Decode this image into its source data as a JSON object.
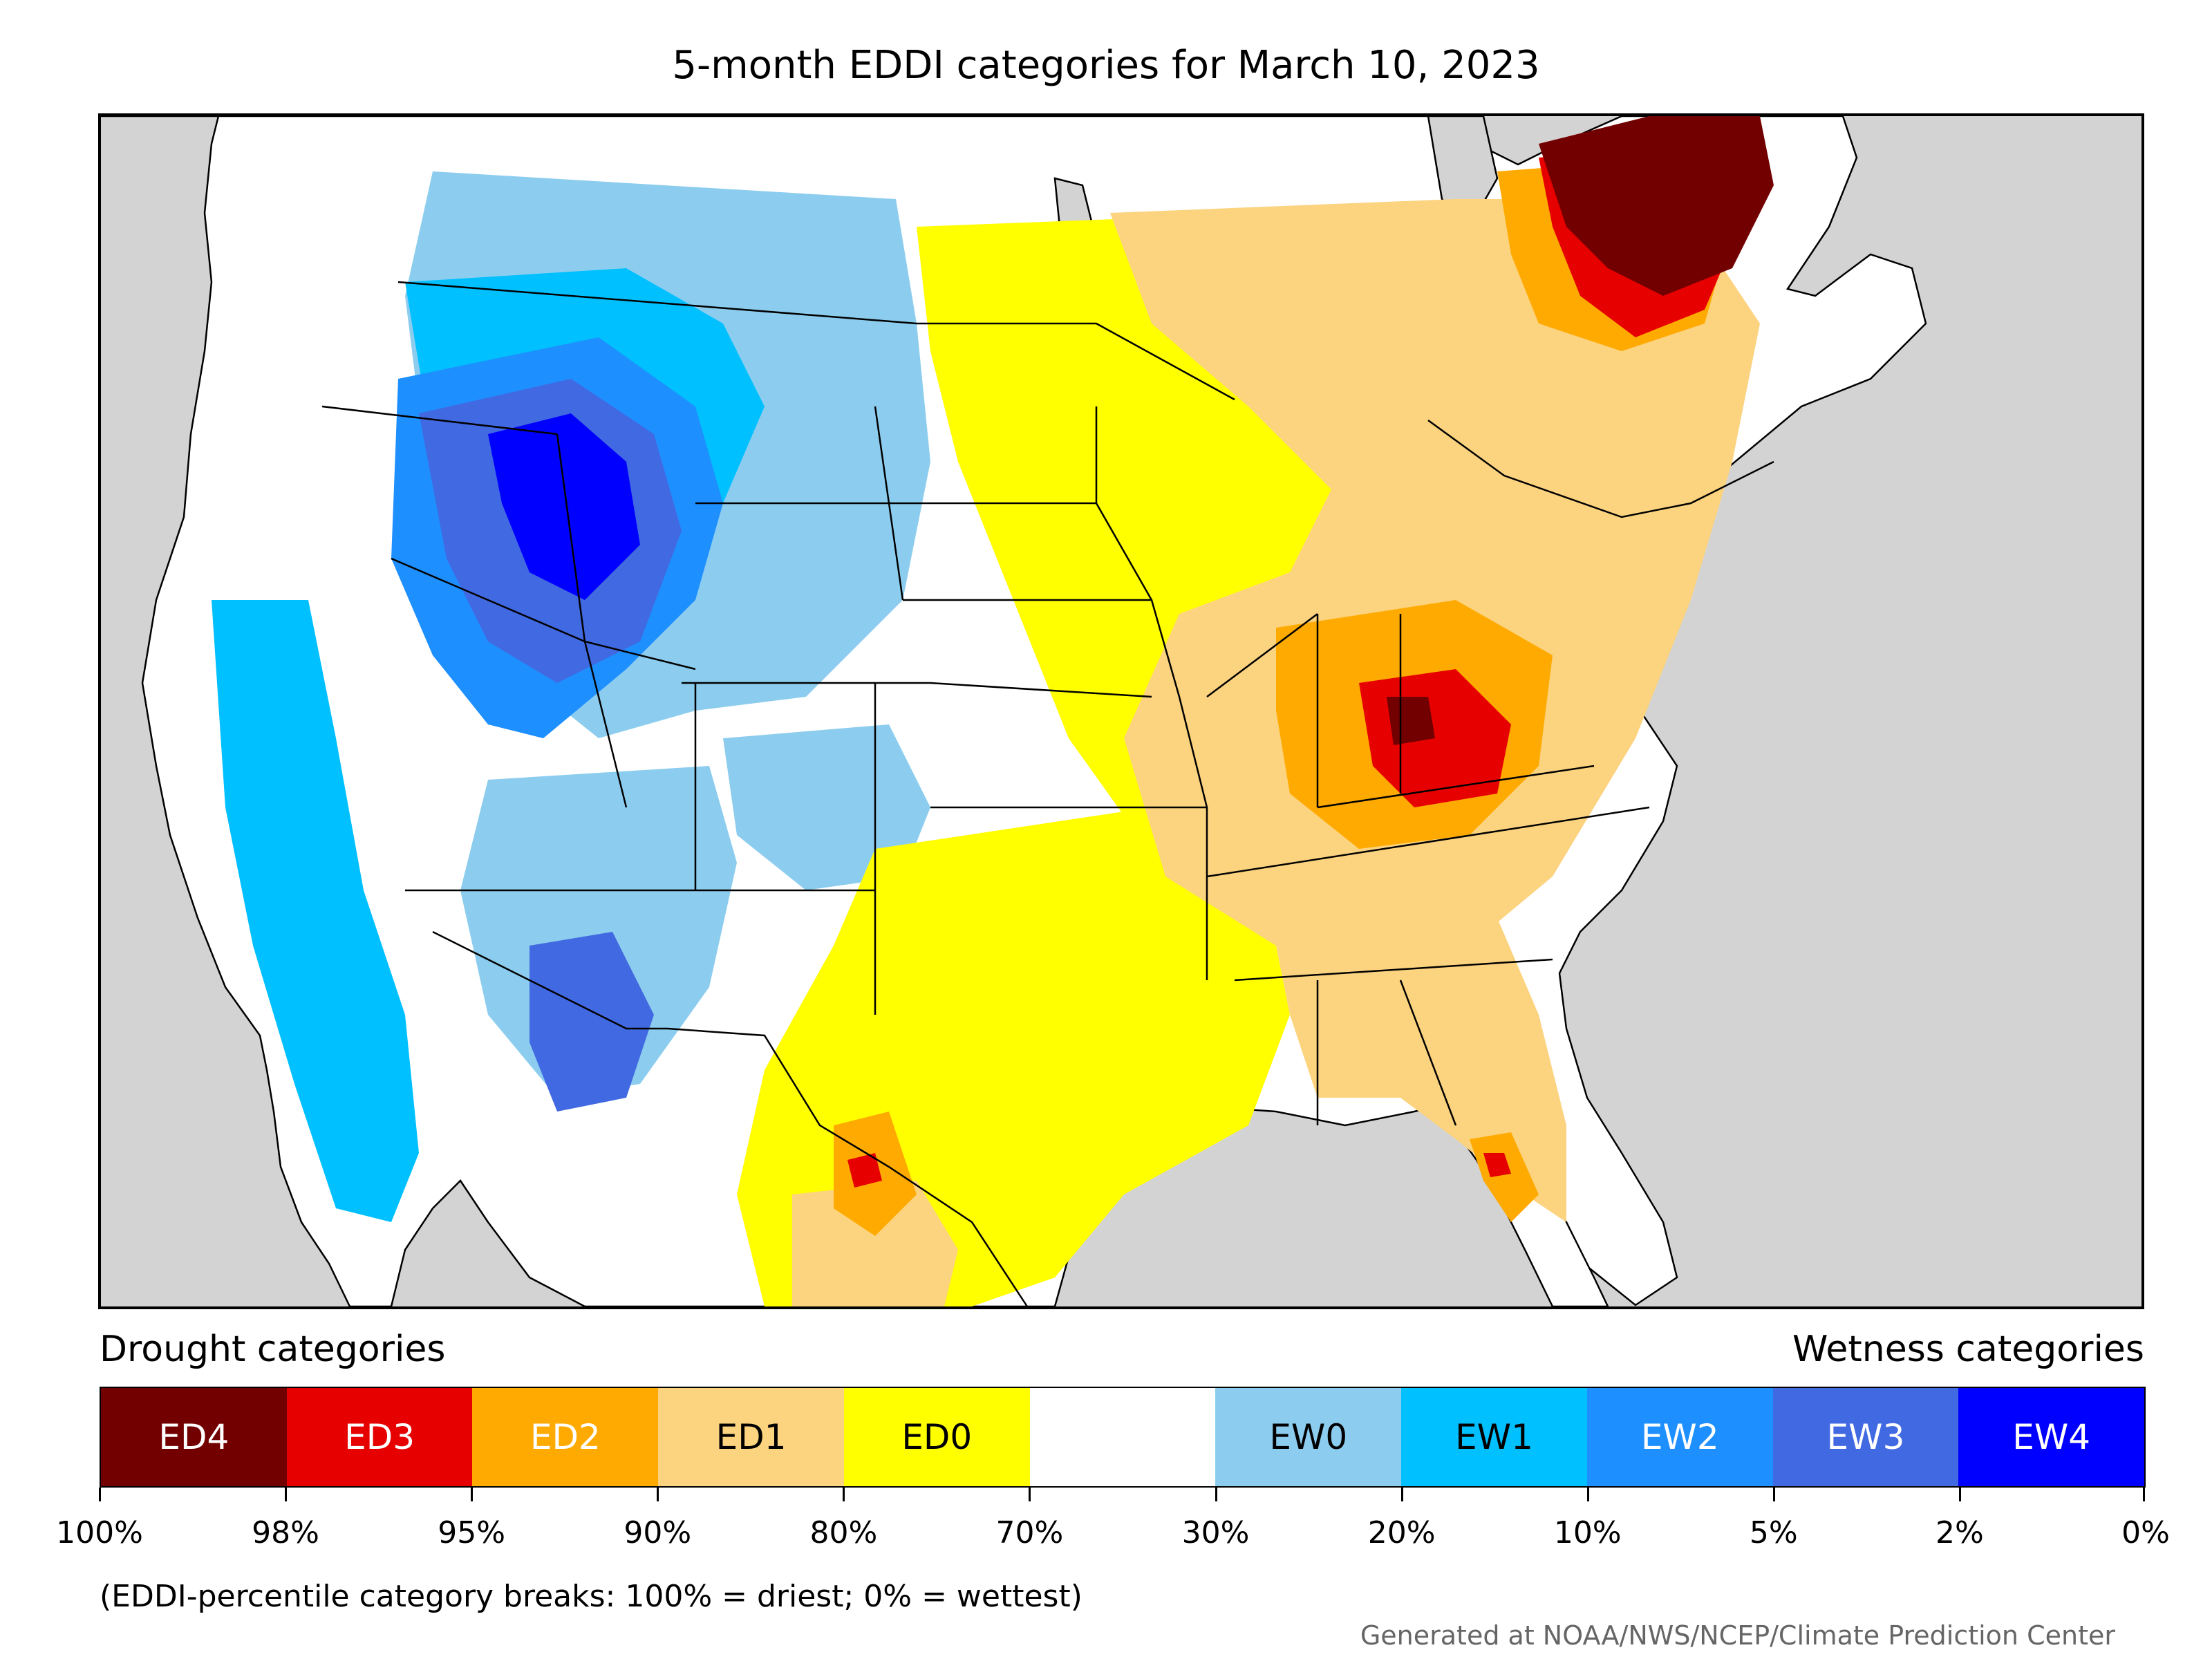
{
  "title": "5-month EDDI categories for March 10, 2023",
  "legend": {
    "left_heading": "Drought categories",
    "right_heading": "Wetness categories",
    "categories": [
      {
        "label": "ED4",
        "color": "#730000",
        "text_color": "#ffffff"
      },
      {
        "label": "ED3",
        "color": "#e60000",
        "text_color": "#ffffff"
      },
      {
        "label": "ED2",
        "color": "#ffaa00",
        "text_color": "#ffffff"
      },
      {
        "label": "ED1",
        "color": "#fcd37f",
        "text_color": "#000000"
      },
      {
        "label": "ED0",
        "color": "#ffff00",
        "text_color": "#000000"
      },
      {
        "label": "",
        "color": "#ffffff",
        "text_color": "#000000"
      },
      {
        "label": "EW0",
        "color": "#8ccdef",
        "text_color": "#000000"
      },
      {
        "label": "EW1",
        "color": "#00c0ff",
        "text_color": "#000000"
      },
      {
        "label": "EW2",
        "color": "#1e8fff",
        "text_color": "#ffffff"
      },
      {
        "label": "EW3",
        "color": "#4169e1",
        "text_color": "#ffffff"
      },
      {
        "label": "EW4",
        "color": "#0000ff",
        "text_color": "#ffffff"
      }
    ],
    "breaks": [
      "100%",
      "98%",
      "95%",
      "90%",
      "80%",
      "70%",
      "30%",
      "20%",
      "10%",
      "5%",
      "2%",
      "0%"
    ]
  },
  "note": "(EDDI-percentile category breaks: 100% = driest; 0% = wettest)",
  "credit": "Generated at NOAA/NWS/NCEP/Climate Prediction Center",
  "map": {
    "ocean_color": "#d3d3d3",
    "land_color": "#ffffff"
  }
}
